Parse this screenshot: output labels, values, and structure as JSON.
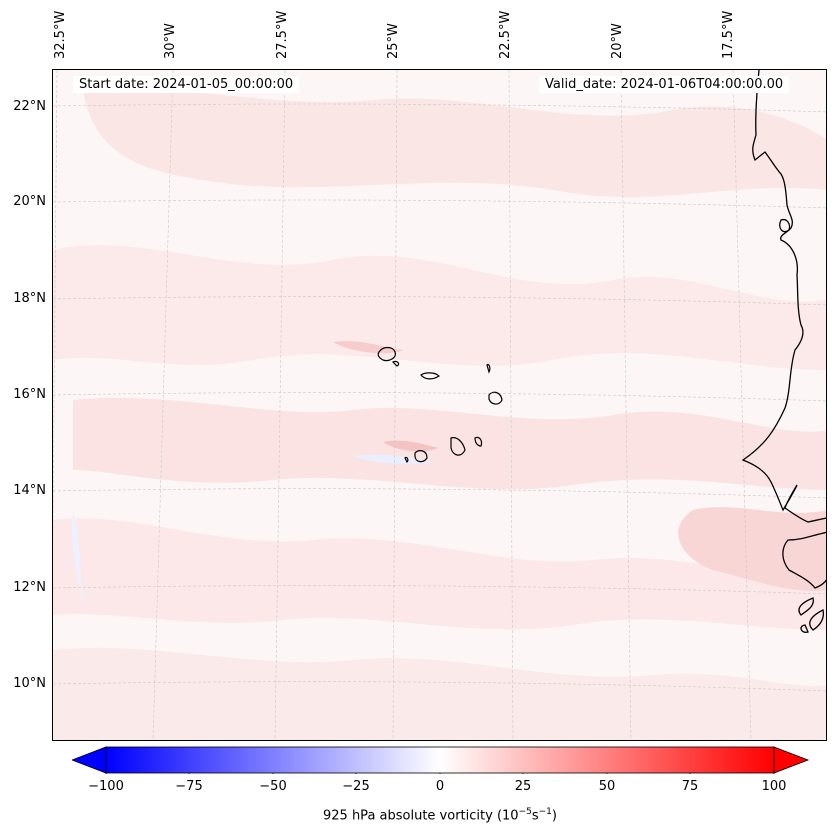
{
  "map": {
    "start_date_text": "Start date: 2024-01-05_00:00:00",
    "valid_date_text": "Valid_date: 2024-01-06T04:00:00.00",
    "longitude_labels": [
      "32.5°W",
      "30°W",
      "27.5°W",
      "25°W",
      "22.5°W",
      "20°W",
      "17.5°W"
    ],
    "latitude_labels": [
      "22°N",
      "20°N",
      "18°N",
      "16°N",
      "14°N",
      "12°N",
      "10°N"
    ],
    "field": "925 hPa absolute vorticity",
    "colors": {
      "negative": "#0000ff",
      "zero": "#ffffff",
      "positive": "#ff0000",
      "coast": "#000000"
    }
  },
  "colorbar": {
    "label_main": "925 hPa absolute vorticity (10",
    "label_exp1": "−5",
    "label_mid": "s",
    "label_exp2": "−1",
    "label_end": ")",
    "range": [
      -100,
      100
    ],
    "ticks": [
      "−100",
      "−75",
      "−50",
      "−25",
      "0",
      "25",
      "50",
      "75",
      "100"
    ],
    "extend": "both"
  }
}
